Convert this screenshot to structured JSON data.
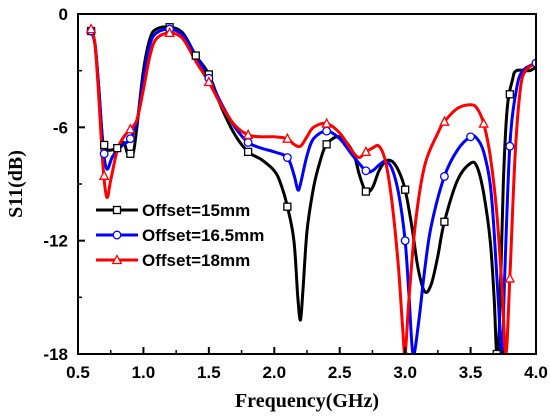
{
  "chart_data": {
    "type": "line",
    "xlabel": "Frequency(GHz)",
    "ylabel": "S11(dB)",
    "xlim": [
      0.5,
      4.0
    ],
    "ylim": [
      -18,
      0
    ],
    "xticks": [
      "0.5",
      "1.0",
      "1.5",
      "2.0",
      "2.5",
      "3.0",
      "3.5",
      "4.0"
    ],
    "yticks": [
      "0",
      "-6",
      "-12",
      "-18"
    ],
    "grid": false,
    "legend_position": "bottom-left",
    "series": [
      {
        "name": "Offset=15mm",
        "color": "#000000",
        "marker": "square",
        "points": [
          [
            0.6,
            -0.9
          ],
          [
            0.63,
            -1.6
          ],
          [
            0.66,
            -4.0
          ],
          [
            0.69,
            -6.8
          ],
          [
            0.72,
            -7.2
          ],
          [
            0.8,
            -7.1
          ],
          [
            0.85,
            -6.8
          ],
          [
            0.88,
            -7.4
          ],
          [
            0.92,
            -7.4
          ],
          [
            0.95,
            -6.0
          ],
          [
            1.0,
            -3.0
          ],
          [
            1.05,
            -1.3
          ],
          [
            1.1,
            -0.8
          ],
          [
            1.2,
            -0.7
          ],
          [
            1.3,
            -1.0
          ],
          [
            1.4,
            -2.2
          ],
          [
            1.5,
            -3.2
          ],
          [
            1.6,
            -5.0
          ],
          [
            1.7,
            -6.4
          ],
          [
            1.8,
            -7.3
          ],
          [
            1.9,
            -7.7
          ],
          [
            2.0,
            -8.3
          ],
          [
            2.05,
            -9.0
          ],
          [
            2.1,
            -10.2
          ],
          [
            2.15,
            -12.0
          ],
          [
            2.18,
            -15.0
          ],
          [
            2.2,
            -16.2
          ],
          [
            2.22,
            -14.5
          ],
          [
            2.25,
            -11.5
          ],
          [
            2.3,
            -9.2
          ],
          [
            2.35,
            -7.8
          ],
          [
            2.4,
            -6.9
          ],
          [
            2.5,
            -6.5
          ],
          [
            2.6,
            -7.3
          ],
          [
            2.65,
            -8.5
          ],
          [
            2.7,
            -9.4
          ],
          [
            2.75,
            -9.2
          ],
          [
            2.8,
            -8.3
          ],
          [
            2.85,
            -7.8
          ],
          [
            2.9,
            -7.8
          ],
          [
            2.95,
            -8.3
          ],
          [
            3.0,
            -9.3
          ],
          [
            3.05,
            -11.2
          ],
          [
            3.1,
            -13.5
          ],
          [
            3.15,
            -14.7
          ],
          [
            3.2,
            -14.3
          ],
          [
            3.25,
            -12.8
          ],
          [
            3.3,
            -11.0
          ],
          [
            3.4,
            -8.8
          ],
          [
            3.5,
            -7.9
          ],
          [
            3.55,
            -8.1
          ],
          [
            3.6,
            -9.5
          ],
          [
            3.65,
            -12.0
          ],
          [
            3.68,
            -15.0
          ],
          [
            3.7,
            -18.0
          ],
          [
            3.72,
            -16.5
          ],
          [
            3.75,
            -9.0
          ],
          [
            3.78,
            -5.0
          ],
          [
            3.82,
            -3.5
          ],
          [
            3.85,
            -3.0
          ],
          [
            3.95,
            -3.0
          ],
          [
            4.0,
            -2.8
          ]
        ],
        "marker_x": [
          0.6,
          0.7,
          0.8,
          0.9,
          1.2,
          1.4,
          1.5,
          1.8,
          2.1,
          2.4,
          2.7,
          3.0,
          3.3,
          3.7,
          3.8
        ]
      },
      {
        "name": "Offset=16.5mm",
        "color": "#0000ff",
        "marker": "circle",
        "points": [
          [
            0.6,
            -0.9
          ],
          [
            0.63,
            -1.6
          ],
          [
            0.66,
            -4.0
          ],
          [
            0.69,
            -7.0
          ],
          [
            0.72,
            -8.2
          ],
          [
            0.76,
            -7.6
          ],
          [
            0.8,
            -7.2
          ],
          [
            0.85,
            -6.9
          ],
          [
            0.9,
            -6.6
          ],
          [
            0.95,
            -5.7
          ],
          [
            1.0,
            -3.4
          ],
          [
            1.05,
            -1.6
          ],
          [
            1.1,
            -1.0
          ],
          [
            1.2,
            -0.8
          ],
          [
            1.3,
            -1.1
          ],
          [
            1.4,
            -2.2
          ],
          [
            1.5,
            -3.4
          ],
          [
            1.6,
            -4.8
          ],
          [
            1.7,
            -6.0
          ],
          [
            1.8,
            -6.8
          ],
          [
            1.9,
            -7.1
          ],
          [
            2.0,
            -7.3
          ],
          [
            2.1,
            -7.6
          ],
          [
            2.15,
            -8.5
          ],
          [
            2.18,
            -9.3
          ],
          [
            2.2,
            -9.0
          ],
          [
            2.25,
            -7.5
          ],
          [
            2.3,
            -6.6
          ],
          [
            2.4,
            -6.2
          ],
          [
            2.5,
            -6.6
          ],
          [
            2.6,
            -7.5
          ],
          [
            2.7,
            -8.3
          ],
          [
            2.75,
            -8.3
          ],
          [
            2.8,
            -8.0
          ],
          [
            2.85,
            -7.8
          ],
          [
            2.9,
            -8.2
          ],
          [
            2.95,
            -9.5
          ],
          [
            3.0,
            -12.0
          ],
          [
            3.03,
            -15.0
          ],
          [
            3.06,
            -18.0
          ],
          [
            3.1,
            -16.5
          ],
          [
            3.15,
            -13.5
          ],
          [
            3.2,
            -11.2
          ],
          [
            3.3,
            -8.6
          ],
          [
            3.4,
            -7.2
          ],
          [
            3.5,
            -6.5
          ],
          [
            3.55,
            -6.6
          ],
          [
            3.6,
            -7.3
          ],
          [
            3.65,
            -9.0
          ],
          [
            3.68,
            -11.5
          ],
          [
            3.71,
            -15.0
          ],
          [
            3.74,
            -18.0
          ],
          [
            3.76,
            -14.0
          ],
          [
            3.8,
            -7.0
          ],
          [
            3.85,
            -4.0
          ],
          [
            3.9,
            -3.0
          ],
          [
            4.0,
            -2.6
          ]
        ],
        "marker_x": [
          0.6,
          0.7,
          0.9,
          1.2,
          1.5,
          1.8,
          2.1,
          2.4,
          2.7,
          3.0,
          3.3,
          3.5,
          3.8,
          4.0
        ]
      },
      {
        "name": "Offset=18mm",
        "color": "#ff0000",
        "marker": "triangle",
        "points": [
          [
            0.6,
            -0.8
          ],
          [
            0.63,
            -1.6
          ],
          [
            0.66,
            -4.5
          ],
          [
            0.69,
            -8.0
          ],
          [
            0.72,
            -9.7
          ],
          [
            0.75,
            -8.8
          ],
          [
            0.8,
            -7.2
          ],
          [
            0.85,
            -6.5
          ],
          [
            0.9,
            -6.1
          ],
          [
            0.95,
            -5.6
          ],
          [
            1.0,
            -4.0
          ],
          [
            1.05,
            -2.2
          ],
          [
            1.1,
            -1.3
          ],
          [
            1.2,
            -1.0
          ],
          [
            1.3,
            -1.3
          ],
          [
            1.4,
            -2.5
          ],
          [
            1.5,
            -3.6
          ],
          [
            1.6,
            -4.9
          ],
          [
            1.7,
            -5.9
          ],
          [
            1.8,
            -6.4
          ],
          [
            1.9,
            -6.5
          ],
          [
            2.0,
            -6.5
          ],
          [
            2.1,
            -6.6
          ],
          [
            2.15,
            -6.9
          ],
          [
            2.2,
            -7.0
          ],
          [
            2.25,
            -6.5
          ],
          [
            2.3,
            -6.0
          ],
          [
            2.4,
            -5.8
          ],
          [
            2.5,
            -6.3
          ],
          [
            2.6,
            -7.3
          ],
          [
            2.65,
            -7.6
          ],
          [
            2.7,
            -7.3
          ],
          [
            2.75,
            -7.1
          ],
          [
            2.8,
            -7.0
          ],
          [
            2.85,
            -7.8
          ],
          [
            2.9,
            -10.0
          ],
          [
            2.95,
            -13.5
          ],
          [
            2.98,
            -16.5
          ],
          [
            3.0,
            -18.0
          ],
          [
            3.03,
            -15.0
          ],
          [
            3.08,
            -11.0
          ],
          [
            3.15,
            -8.0
          ],
          [
            3.25,
            -6.3
          ],
          [
            3.3,
            -5.7
          ],
          [
            3.4,
            -5.0
          ],
          [
            3.5,
            -4.8
          ],
          [
            3.55,
            -5.0
          ],
          [
            3.6,
            -5.8
          ],
          [
            3.65,
            -7.5
          ],
          [
            3.7,
            -10.5
          ],
          [
            3.74,
            -14.5
          ],
          [
            3.77,
            -18.0
          ],
          [
            3.8,
            -14.0
          ],
          [
            3.84,
            -7.5
          ],
          [
            3.88,
            -4.0
          ],
          [
            3.92,
            -3.0
          ],
          [
            4.0,
            -2.6
          ]
        ],
        "marker_x": [
          0.6,
          0.7,
          0.9,
          1.2,
          1.5,
          1.8,
          2.1,
          2.4,
          2.7,
          3.0,
          3.3,
          3.6,
          3.8
        ]
      }
    ]
  }
}
